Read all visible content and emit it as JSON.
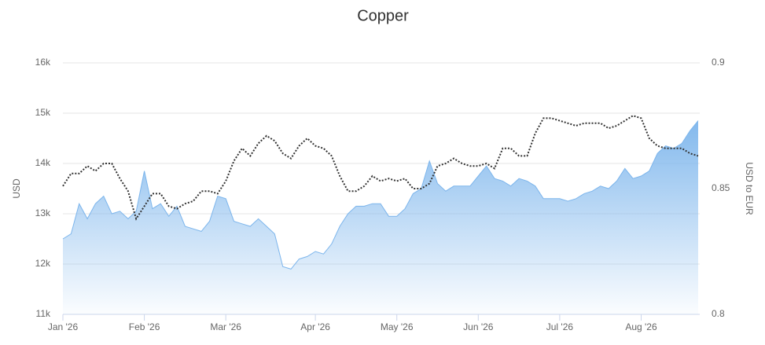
{
  "chart_data": {
    "type": "area-line",
    "title": "Copper",
    "y_label": "USD",
    "y2_label": "USD to EUR",
    "categories": [
      "Jan '26",
      null,
      null,
      null,
      null,
      null,
      null,
      null,
      null,
      null,
      "Feb '26",
      null,
      null,
      null,
      null,
      null,
      null,
      null,
      null,
      null,
      "Mar '26",
      null,
      null,
      null,
      null,
      null,
      null,
      null,
      null,
      null,
      null,
      "Apr '26",
      null,
      null,
      null,
      null,
      null,
      null,
      null,
      null,
      null,
      "May '26",
      null,
      null,
      null,
      null,
      null,
      null,
      null,
      null,
      null,
      "Jun '26",
      null,
      null,
      null,
      null,
      null,
      null,
      null,
      null,
      null,
      "Jul '26",
      null,
      null,
      null,
      null,
      null,
      null,
      null,
      null,
      null,
      "Aug '26",
      null,
      null,
      null,
      null,
      null,
      null,
      null
    ],
    "series": [
      {
        "type": "area",
        "color": "#7cb5ec",
        "values": [
          12500,
          12600,
          13200,
          12900,
          13200,
          13350,
          13000,
          13050,
          12900,
          13050,
          13850,
          13100,
          13200,
          12950,
          13150,
          12750,
          12700,
          12650,
          12850,
          13350,
          13300,
          12850,
          12800,
          12750,
          12900,
          12750,
          12600,
          11950,
          11900,
          12100,
          12150,
          12250,
          12200,
          12400,
          12750,
          13000,
          13150,
          13150,
          13200,
          13200,
          12950,
          12950,
          13100,
          13400,
          13500,
          14050,
          13600,
          13450,
          13550,
          13550,
          13550,
          13750,
          13950,
          13700,
          13650,
          13550,
          13700,
          13650,
          13550,
          13300,
          13300,
          13300,
          13250,
          13300,
          13400,
          13450,
          13550,
          13500,
          13650,
          13900,
          13700,
          13750,
          13850,
          14200,
          14350,
          14300,
          14400,
          14650,
          14850
        ]
      },
      {
        "type": "line",
        "axis": "y2",
        "color": "#333333",
        "values": [
          0.851,
          0.856,
          0.856,
          0.859,
          0.857,
          0.86,
          0.86,
          0.854,
          0.849,
          0.838,
          0.843,
          0.848,
          0.848,
          0.843,
          0.842,
          0.844,
          0.845,
          0.849,
          0.849,
          0.848,
          0.853,
          0.861,
          0.866,
          0.863,
          0.868,
          0.871,
          0.869,
          0.864,
          0.862,
          0.867,
          0.87,
          0.867,
          0.866,
          0.863,
          0.855,
          0.849,
          0.849,
          0.851,
          0.855,
          0.853,
          0.854,
          0.853,
          0.854,
          0.85,
          0.85,
          0.852,
          0.859,
          0.86,
          0.862,
          0.86,
          0.859,
          0.859,
          0.86,
          0.858,
          0.866,
          0.866,
          0.863,
          0.863,
          0.872,
          0.878,
          0.878,
          0.877,
          0.876,
          0.875,
          0.876,
          0.876,
          0.876,
          0.874,
          0.875,
          0.877,
          0.879,
          0.878,
          0.87,
          0.867,
          0.866,
          0.866,
          0.866,
          0.864,
          0.863
        ]
      }
    ],
    "ylim": [
      11000,
      16000
    ],
    "yticks": [
      {
        "value": 11000,
        "label": "11k"
      },
      {
        "value": 12000,
        "label": "12k"
      },
      {
        "value": 13000,
        "label": "13k"
      },
      {
        "value": 14000,
        "label": "14k"
      },
      {
        "value": 15000,
        "label": "15k"
      },
      {
        "value": 16000,
        "label": "16k"
      }
    ],
    "y2lim": [
      0.8,
      0.9
    ],
    "y2ticks": [
      0.8,
      0.85,
      0.9
    ],
    "grid": true
  }
}
